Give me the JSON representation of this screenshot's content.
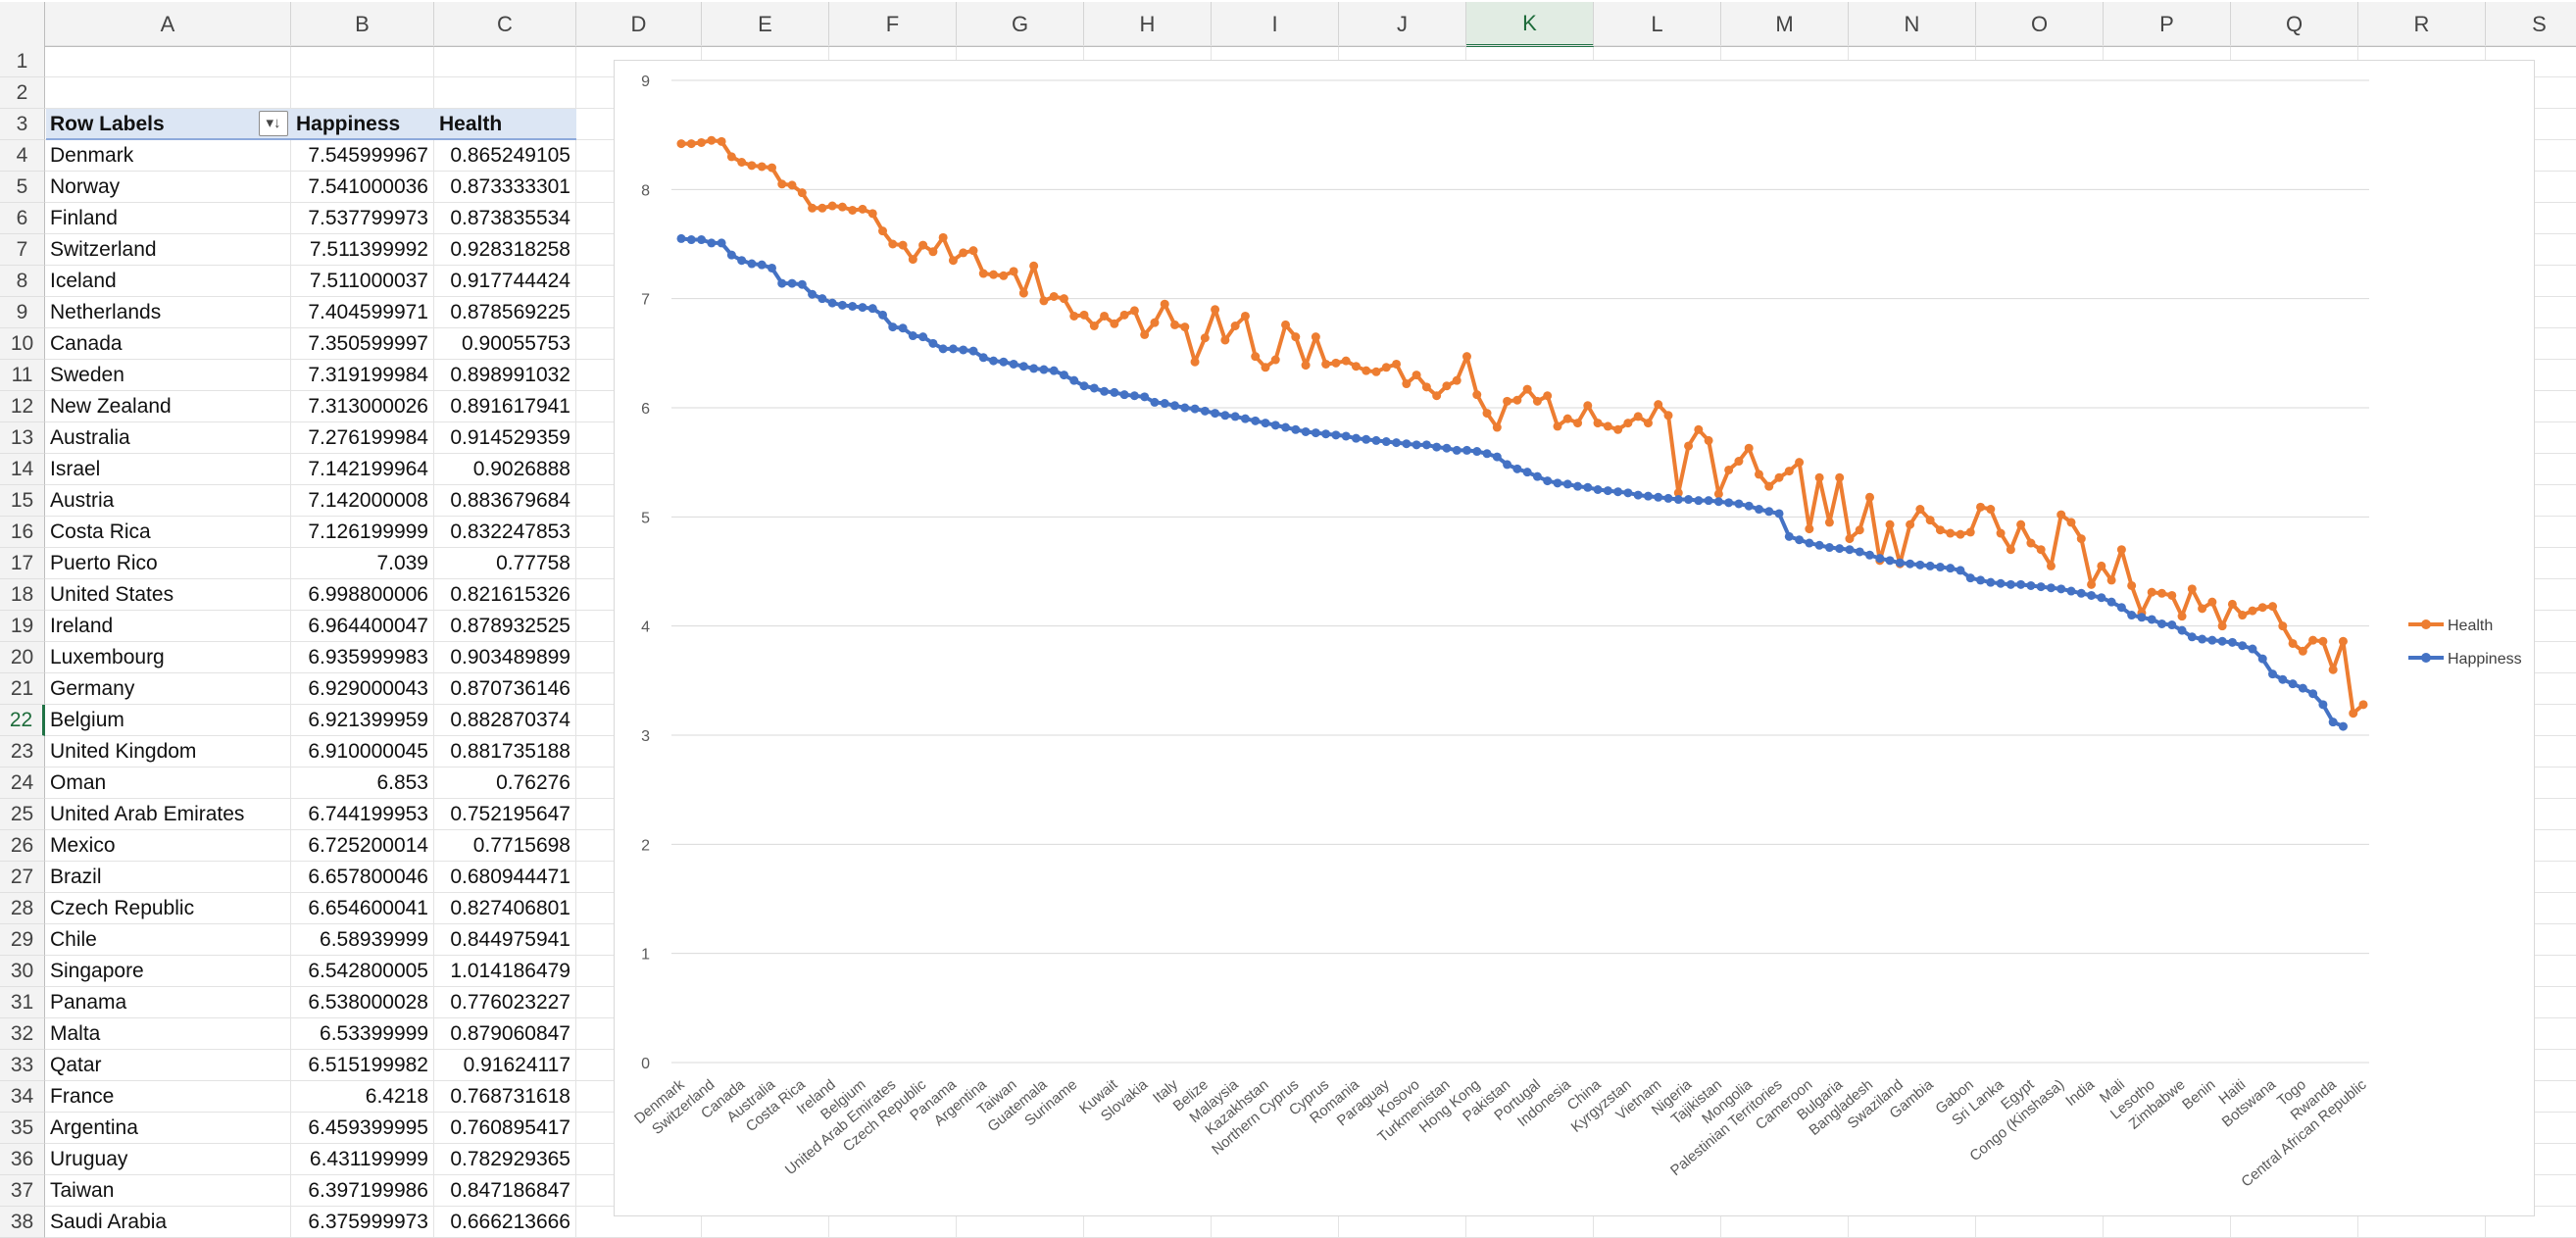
{
  "columns": [
    "A",
    "B",
    "C",
    "D",
    "E",
    "F",
    "G",
    "H",
    "I",
    "J",
    "K",
    "L",
    "M",
    "N",
    "O",
    "P",
    "Q",
    "R",
    "S"
  ],
  "selected_column": "K",
  "selected_row": "22",
  "rows": [
    "1",
    "2",
    "3",
    "4",
    "5",
    "6",
    "7",
    "8",
    "9",
    "10",
    "11",
    "12",
    "13",
    "14",
    "15",
    "16",
    "17",
    "18",
    "19",
    "20",
    "21",
    "22",
    "23",
    "24",
    "25",
    "26",
    "27",
    "28",
    "29",
    "30",
    "31",
    "32",
    "33",
    "34",
    "35",
    "36",
    "37",
    "38"
  ],
  "pivot": {
    "header_labels": {
      "label": "Row Labels",
      "happiness": "Happiness",
      "health": "Health"
    },
    "filter_icon": "sort-descending-filter-icon",
    "rows": [
      {
        "label": "Denmark",
        "happiness": "7.545999967",
        "health": "0.865249105"
      },
      {
        "label": "Norway",
        "happiness": "7.541000036",
        "health": "0.873333301"
      },
      {
        "label": "Finland",
        "happiness": "7.537799973",
        "health": "0.873835534"
      },
      {
        "label": "Switzerland",
        "happiness": "7.511399992",
        "health": "0.928318258"
      },
      {
        "label": "Iceland",
        "happiness": "7.511000037",
        "health": "0.917744424"
      },
      {
        "label": "Netherlands",
        "happiness": "7.404599971",
        "health": "0.878569225"
      },
      {
        "label": "Canada",
        "happiness": "7.350599997",
        "health": "0.90055753"
      },
      {
        "label": "Sweden",
        "happiness": "7.319199984",
        "health": "0.898991032"
      },
      {
        "label": "New Zealand",
        "happiness": "7.313000026",
        "health": "0.891617941"
      },
      {
        "label": "Australia",
        "happiness": "7.276199984",
        "health": "0.914529359"
      },
      {
        "label": "Israel",
        "happiness": "7.142199964",
        "health": "0.9026888"
      },
      {
        "label": "Austria",
        "happiness": "7.142000008",
        "health": "0.883679684"
      },
      {
        "label": "Costa Rica",
        "happiness": "7.126199999",
        "health": "0.832247853"
      },
      {
        "label": "Puerto Rico",
        "happiness": "7.039",
        "health": "0.77758"
      },
      {
        "label": "United States",
        "happiness": "6.998800006",
        "health": "0.821615326"
      },
      {
        "label": "Ireland",
        "happiness": "6.964400047",
        "health": "0.878932525"
      },
      {
        "label": "Luxembourg",
        "happiness": "6.935999983",
        "health": "0.903489899"
      },
      {
        "label": "Germany",
        "happiness": "6.929000043",
        "health": "0.870736146"
      },
      {
        "label": "Belgium",
        "happiness": "6.921399959",
        "health": "0.882870374"
      },
      {
        "label": "United Kingdom",
        "happiness": "6.910000045",
        "health": "0.881735188"
      },
      {
        "label": "Oman",
        "happiness": "6.853",
        "health": "0.76276"
      },
      {
        "label": "United Arab Emirates",
        "happiness": "6.744199953",
        "health": "0.752195647"
      },
      {
        "label": "Mexico",
        "happiness": "6.725200014",
        "health": "0.7715698"
      },
      {
        "label": "Brazil",
        "happiness": "6.657800046",
        "health": "0.680944471"
      },
      {
        "label": "Czech Republic",
        "happiness": "6.654600041",
        "health": "0.827406801"
      },
      {
        "label": "Chile",
        "happiness": "6.58939999",
        "health": "0.844975941"
      },
      {
        "label": "Singapore",
        "happiness": "6.542800005",
        "health": "1.014186479"
      },
      {
        "label": "Panama",
        "happiness": "6.538000028",
        "health": "0.776023227"
      },
      {
        "label": "Malta",
        "happiness": "6.53399999",
        "health": "0.879060847"
      },
      {
        "label": "Qatar",
        "happiness": "6.515199982",
        "health": "0.91624117"
      },
      {
        "label": "France",
        "happiness": "6.4218",
        "health": "0.768731618"
      },
      {
        "label": "Argentina",
        "happiness": "6.459399995",
        "health": "0.760895417"
      },
      {
        "label": "Uruguay",
        "happiness": "6.431199999",
        "health": "0.782929365"
      },
      {
        "label": "Taiwan",
        "happiness": "6.397199986",
        "health": "0.847186847"
      },
      {
        "label": "Saudi Arabia",
        "happiness": "6.375999973",
        "health": "0.666213666"
      }
    ]
  },
  "colors": {
    "happiness": "#4472c4",
    "health": "#ed7d31"
  },
  "chart_data": {
    "type": "line",
    "title": "",
    "xlabel": "",
    "ylabel": "",
    "ylim": [
      0,
      9
    ],
    "y_ticks": [
      "0",
      "1",
      "2",
      "3",
      "4",
      "5",
      "6",
      "7",
      "8",
      "9"
    ],
    "grid": true,
    "legend_position": "right",
    "x_tick_labels": [
      "Denmark",
      "Switzerland",
      "Canada",
      "Australia",
      "Costa Rica",
      "Ireland",
      "Belgium",
      "United Arab Emirates",
      "Czech Republic",
      "Panama",
      "Argentina",
      "Taiwan",
      "Guatemala",
      "Suriname",
      "Kuwait",
      "Slovakia",
      "Italy",
      "Belize",
      "Malaysia",
      "Kazakhstan",
      "Northern Cyprus",
      "Cyprus",
      "Romania",
      "Paraguay",
      "Kosovo",
      "Turkmenistan",
      "Hong Kong",
      "Pakistan",
      "Portugal",
      "Indonesia",
      "China",
      "Kyrgyzstan",
      "Vietnam",
      "Nigeria",
      "Tajikistan",
      "Mongolia",
      "Palestinian Territories",
      "Cameroon",
      "Bulgaria",
      "Bangladesh",
      "Swaziland",
      "Gambia",
      "Gabon",
      "Sri Lanka",
      "Egypt",
      "Congo (Kinshasa)",
      "India",
      "Mali",
      "Lesotho",
      "Zimbabwe",
      "Benin",
      "Haiti",
      "Botswana",
      "Togo",
      "Rwanda",
      "Central African Republic"
    ],
    "series": [
      {
        "name": "Health",
        "values": [
          8.42,
          8.42,
          8.43,
          8.45,
          8.44,
          8.3,
          8.25,
          8.22,
          8.21,
          8.2,
          8.05,
          8.04,
          7.97,
          7.83,
          7.83,
          7.85,
          7.84,
          7.81,
          7.82,
          7.78,
          7.62,
          7.5,
          7.49,
          7.36,
          7.49,
          7.43,
          7.56,
          7.35,
          7.42,
          7.44,
          7.23,
          7.22,
          7.21,
          7.25,
          7.05,
          7.3,
          6.98,
          7.02,
          7.0,
          6.84,
          6.85,
          6.75,
          6.84,
          6.77,
          6.85,
          6.89,
          6.67,
          6.78,
          6.95,
          6.76,
          6.74,
          6.42,
          6.64,
          6.9,
          6.62,
          6.75,
          6.84,
          6.47,
          6.37,
          6.44,
          6.76,
          6.65,
          6.39,
          6.65,
          6.4,
          6.41,
          6.43,
          6.38,
          6.34,
          6.33,
          6.37,
          6.4,
          6.22,
          6.3,
          6.19,
          6.11,
          6.2,
          6.25,
          6.47,
          6.12,
          5.95,
          5.82,
          6.06,
          6.07,
          6.17,
          6.06,
          6.11,
          5.83,
          5.9,
          5.86,
          6.02,
          5.86,
          5.83,
          5.8,
          5.86,
          5.92,
          5.86,
          6.03,
          5.93,
          5.22,
          5.65,
          5.8,
          5.7,
          5.21,
          5.43,
          5.51,
          5.63,
          5.39,
          5.28,
          5.36,
          5.42,
          5.5,
          4.89,
          5.36,
          4.95,
          5.36,
          4.8,
          4.88,
          5.18,
          4.6,
          4.93,
          4.57,
          4.93,
          5.07,
          4.97,
          4.88,
          4.85,
          4.84,
          4.86,
          5.09,
          5.07,
          4.85,
          4.7,
          4.93,
          4.76,
          4.7,
          4.55,
          5.02,
          4.95,
          4.8,
          4.38,
          4.55,
          4.42,
          4.7,
          4.37,
          4.12,
          4.31,
          4.3,
          4.28,
          4.09,
          4.34,
          4.16,
          4.22,
          4.0,
          4.2,
          4.1,
          4.14,
          4.17,
          4.18,
          4.0,
          3.84,
          3.77,
          3.87,
          3.86,
          3.6,
          3.86,
          3.2,
          3.28
        ]
      },
      {
        "name": "Happiness",
        "values": [
          7.55,
          7.54,
          7.54,
          7.51,
          7.51,
          7.4,
          7.35,
          7.32,
          7.31,
          7.28,
          7.14,
          7.14,
          7.13,
          7.04,
          7.0,
          6.96,
          6.94,
          6.93,
          6.92,
          6.91,
          6.85,
          6.74,
          6.73,
          6.66,
          6.65,
          6.59,
          6.54,
          6.54,
          6.53,
          6.52,
          6.46,
          6.43,
          6.42,
          6.4,
          6.38,
          6.36,
          6.35,
          6.34,
          6.3,
          6.25,
          6.2,
          6.18,
          6.15,
          6.14,
          6.12,
          6.11,
          6.1,
          6.05,
          6.04,
          6.02,
          6.0,
          5.99,
          5.97,
          5.95,
          5.93,
          5.92,
          5.9,
          5.88,
          5.86,
          5.84,
          5.82,
          5.8,
          5.78,
          5.77,
          5.76,
          5.75,
          5.74,
          5.72,
          5.71,
          5.7,
          5.69,
          5.68,
          5.67,
          5.66,
          5.66,
          5.64,
          5.63,
          5.61,
          5.61,
          5.6,
          5.58,
          5.55,
          5.48,
          5.44,
          5.41,
          5.37,
          5.33,
          5.31,
          5.3,
          5.28,
          5.27,
          5.25,
          5.24,
          5.23,
          5.22,
          5.2,
          5.19,
          5.18,
          5.17,
          5.16,
          5.16,
          5.15,
          5.15,
          5.14,
          5.13,
          5.12,
          5.1,
          5.07,
          5.05,
          5.03,
          4.82,
          4.79,
          4.76,
          4.74,
          4.72,
          4.71,
          4.7,
          4.68,
          4.65,
          4.62,
          4.6,
          4.58,
          4.57,
          4.56,
          4.55,
          4.54,
          4.53,
          4.51,
          4.44,
          4.42,
          4.4,
          4.39,
          4.38,
          4.38,
          4.37,
          4.36,
          4.35,
          4.34,
          4.32,
          4.3,
          4.28,
          4.26,
          4.22,
          4.17,
          4.1,
          4.08,
          4.06,
          4.02,
          4.01,
          3.96,
          3.9,
          3.88,
          3.87,
          3.86,
          3.85,
          3.82,
          3.79,
          3.7,
          3.56,
          3.51,
          3.47,
          3.43,
          3.38,
          3.28,
          3.12,
          3.08
        ]
      }
    ]
  }
}
